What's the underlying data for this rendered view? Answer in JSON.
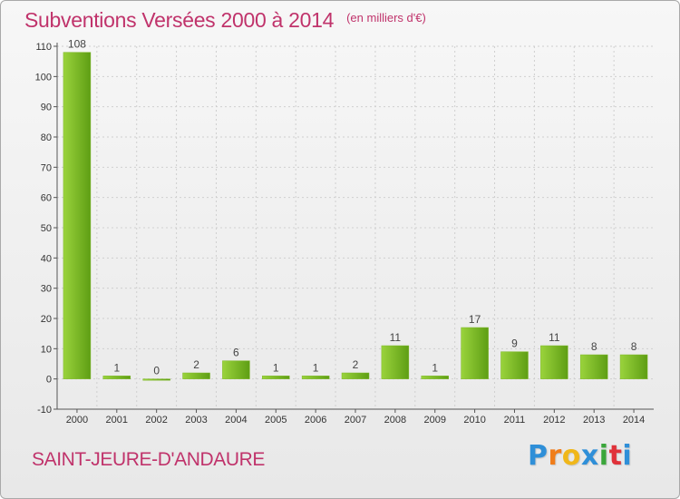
{
  "header": {
    "title": "Subventions Versées 2000 à 2014",
    "subtitle": "(en milliers d'€)"
  },
  "footer": {
    "commune": "SAINT-JEURE-D'ANDAURE",
    "brand": {
      "letters": [
        "P",
        "r",
        "o",
        "x",
        "i",
        "t",
        "i"
      ],
      "colors": [
        "#2f8fd8",
        "#f07d1a",
        "#f0b71a",
        "#2f8fd8",
        "#3aa63a",
        "#e0323a",
        "#2f8fd8"
      ]
    }
  },
  "colors": {
    "bar_light": "#9ad33c",
    "bar_dark": "#5e9e14",
    "axis": "#555555",
    "grid": "#cfcfcf",
    "accent": "#c0336b"
  },
  "chart_data": {
    "type": "bar",
    "title": "Subventions Versées 2000 à 2014",
    "subtitle": "(en milliers d'€)",
    "xlabel": "",
    "ylabel": "",
    "categories": [
      "2000",
      "2001",
      "2002",
      "2003",
      "2004",
      "2005",
      "2006",
      "2007",
      "2008",
      "2009",
      "2010",
      "2011",
      "2012",
      "2013",
      "2014"
    ],
    "values": [
      108,
      1,
      0,
      2,
      6,
      1,
      1,
      2,
      11,
      1,
      17,
      9,
      11,
      8,
      8
    ],
    "ylim": [
      -10,
      110
    ],
    "yticks": [
      -10,
      0,
      10,
      20,
      30,
      40,
      50,
      60,
      70,
      80,
      90,
      100,
      110
    ],
    "grid": true,
    "legend": "none"
  }
}
